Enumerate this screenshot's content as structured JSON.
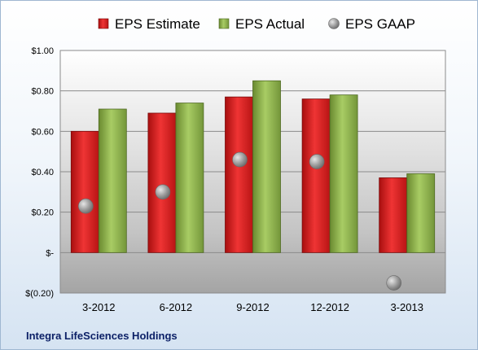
{
  "chart_data": {
    "type": "bar",
    "categories": [
      "3-2012",
      "6-2012",
      "9-2012",
      "12-2012",
      "3-2013"
    ],
    "series": [
      {
        "name": "EPS Estimate",
        "kind": "bar",
        "color": "#d42020",
        "values": [
          0.6,
          0.69,
          0.77,
          0.76,
          0.37
        ]
      },
      {
        "name": "EPS Actual",
        "kind": "bar",
        "color": "#8cb04a",
        "values": [
          0.71,
          0.74,
          0.85,
          0.78,
          0.39
        ]
      },
      {
        "name": "EPS GAAP",
        "kind": "marker",
        "color": "#8a8a8a",
        "values": [
          0.23,
          0.3,
          0.46,
          0.45,
          -0.15
        ]
      }
    ],
    "ylim": [
      -0.2,
      1.0
    ],
    "yticks": [
      1.0,
      0.8,
      0.6,
      0.4,
      0.2,
      0.0,
      -0.2
    ],
    "ytick_labels": [
      "$1.00",
      "$0.80",
      "$0.60",
      "$0.40",
      "$0.20",
      "$-",
      "$(0.20)"
    ],
    "grid": true,
    "legend_position": "top",
    "footer": "Integra LifeSciences Holdings"
  }
}
